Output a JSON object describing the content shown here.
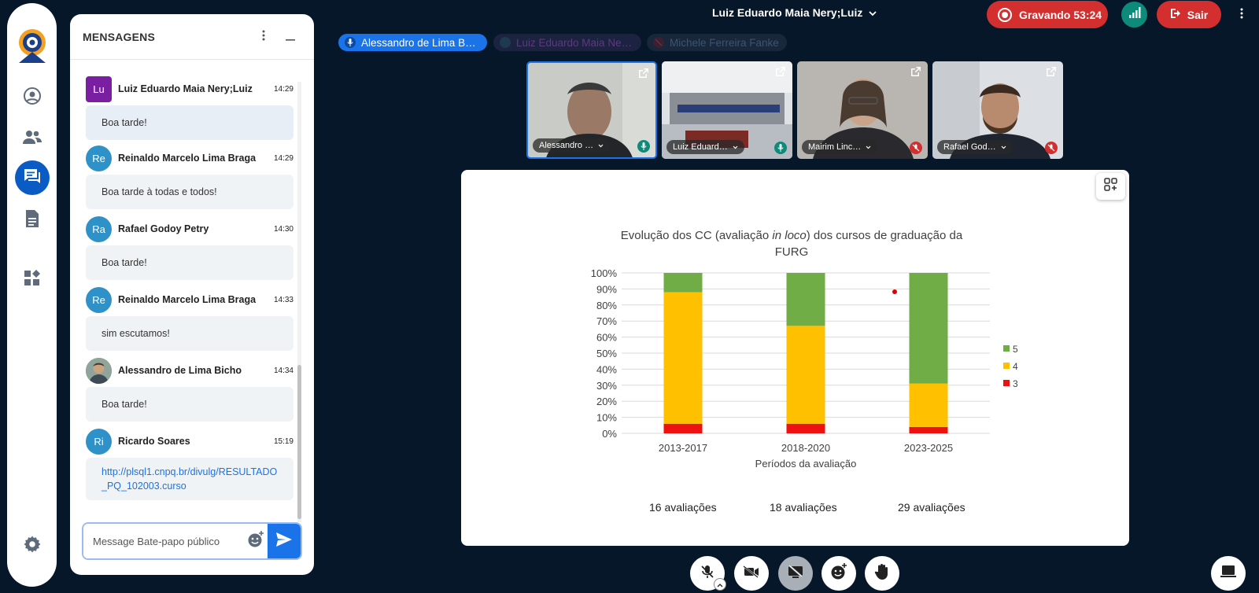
{
  "chat": {
    "title": "MENSAGENS",
    "messages": [
      {
        "initials": "Lu",
        "name": "Luiz Eduardo Maia Nery;Luiz",
        "time": "14:29",
        "text": "Boa tarde!",
        "color": "#7b1fa2"
      },
      {
        "initials": "Re",
        "name": "Reinaldo Marcelo Lima Braga",
        "time": "14:29",
        "text": "Boa tarde à todas e todos!",
        "color": "#2e92c9"
      },
      {
        "initials": "Ra",
        "name": "Rafael Godoy Petry",
        "time": "14:30",
        "text": "Boa tarde!",
        "color": "#2e92c9"
      },
      {
        "initials": "Re",
        "name": "Reinaldo Marcelo Lima Braga",
        "time": "14:33",
        "text": "sim escutamos!",
        "color": "#2e92c9"
      },
      {
        "initials": "",
        "name": "Alessandro de Lima Bicho",
        "time": "14:34",
        "text": "Boa tarde!",
        "color": "#6b7a68"
      },
      {
        "initials": "Ri",
        "name": "Ricardo Soares",
        "time": "15:19",
        "text": "http://plsql1.cnpq.br/divulg/RESULTADO_PQ_102003.curso",
        "color": "#2e92c9"
      }
    ],
    "placeholder": "Message Bate-papo público"
  },
  "topbar": {
    "meeting_name": "Luiz Eduardo Maia Nery;Luiz",
    "recording_label": "Gravando 53:24",
    "leave_label": "Sair"
  },
  "talkers": [
    {
      "name": "Alessandro de Lima B…",
      "active": true
    },
    {
      "name": "Luiz Eduardo Maia Ne…",
      "active": false
    },
    {
      "name": "Michele Ferreira Fanke",
      "active": false
    }
  ],
  "videos": [
    {
      "name": "Alessandro …",
      "muted": false
    },
    {
      "name": "Luiz Eduard…",
      "muted": false
    },
    {
      "name": "Mairim Linc…",
      "muted": true
    },
    {
      "name": "Rafael God…",
      "muted": true
    }
  ],
  "chart_data": {
    "type": "bar",
    "stacked": true,
    "title": "Evolução dos CC (avaliação in loco) dos cursos de graduação da FURG",
    "title_parts": {
      "before": "Evolução dos CC (avaliação ",
      "italic": "in loco",
      "after": ") dos cursos de graduação da FURG"
    },
    "xlabel": "Períodos da avaliação",
    "ylabel": "",
    "categories": [
      "2013-2017",
      "2018-2020",
      "2023-2025"
    ],
    "series": [
      {
        "name": "3",
        "color": "#ee1111",
        "values": [
          6,
          6,
          4
        ]
      },
      {
        "name": "4",
        "color": "#ffc000",
        "values": [
          82,
          61,
          27
        ]
      },
      {
        "name": "5",
        "color": "#70ad47",
        "values": [
          12,
          33,
          69
        ]
      }
    ],
    "yticks": [
      "0%",
      "10%",
      "20%",
      "30%",
      "40%",
      "50%",
      "60%",
      "70%",
      "80%",
      "90%",
      "100%"
    ],
    "ylim": [
      0,
      100
    ],
    "legend_position": "right",
    "period_counts": [
      "16 avaliações",
      "18 avaliações",
      "29 avaliações"
    ]
  }
}
